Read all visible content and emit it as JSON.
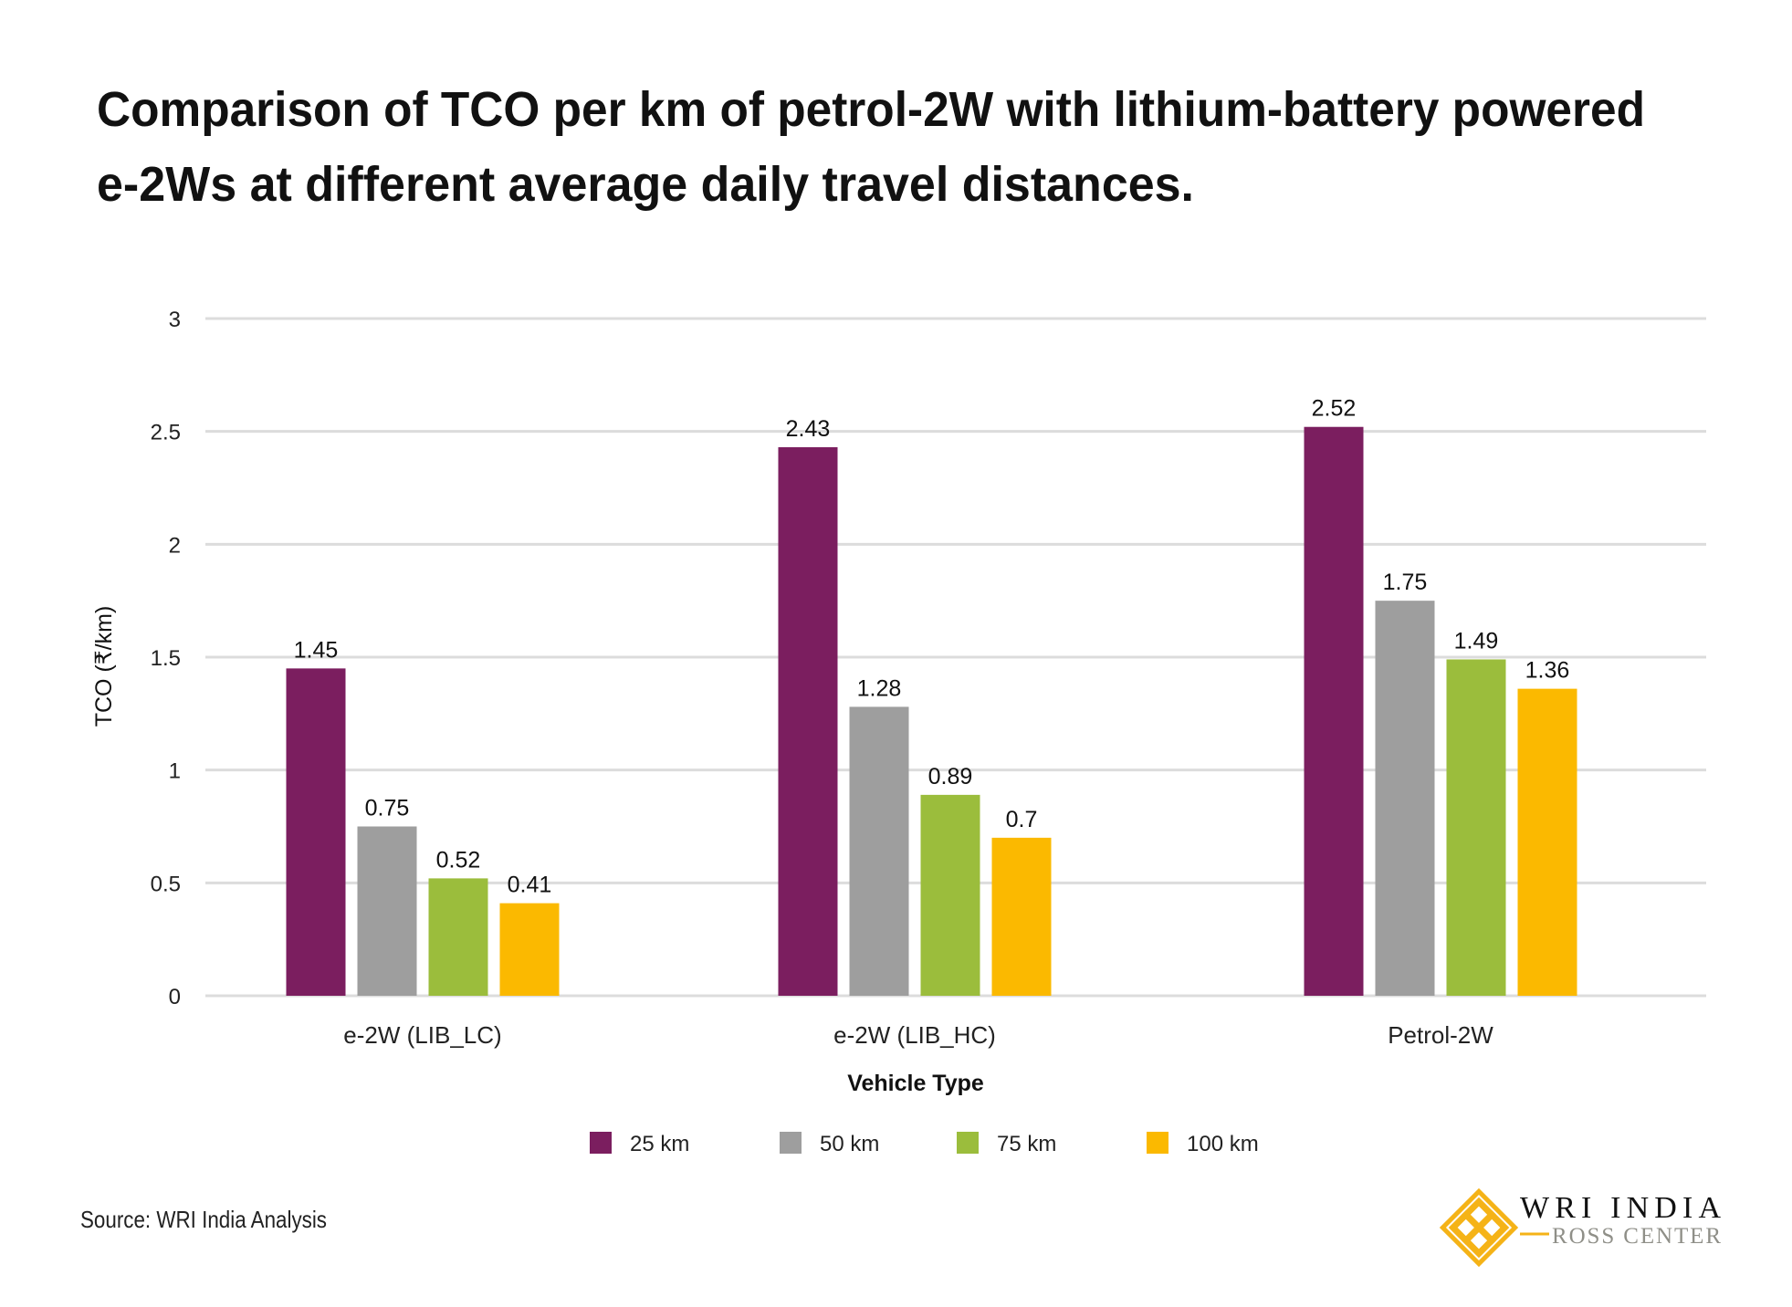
{
  "chart_data": {
    "type": "bar",
    "title": "Comparison of TCO per km of petrol-2W with lithium-battery powered e-2Ws at different average daily travel distances.",
    "title_lines": [
      "Comparison of TCO per km of petrol-2W with lithium-battery powered",
      "e-2Ws at different average daily travel distances."
    ],
    "xlabel": "Vehicle Type",
    "ylabel": "TCO (₹/km)",
    "ylim": [
      0,
      3
    ],
    "yticks": [
      "0",
      "0.5",
      "1",
      "1.5",
      "2",
      "2.5",
      "3"
    ],
    "grid": true,
    "legend_placement": "bottom",
    "categories": [
      "e-2W (LIB_LC)",
      "e-2W (LIB_HC)",
      "Petrol-2W"
    ],
    "series": [
      {
        "name": "25 km",
        "color": "#7B1E5F",
        "values": [
          1.45,
          2.43,
          2.52
        ]
      },
      {
        "name": "50 km",
        "color": "#9E9E9E",
        "values": [
          0.75,
          1.28,
          1.75
        ]
      },
      {
        "name": "75 km",
        "color": "#9BBD3C",
        "values": [
          0.52,
          0.89,
          1.49
        ]
      },
      {
        "name": "100 km",
        "color": "#FBB900",
        "values": [
          0.41,
          0.7,
          1.36
        ]
      }
    ]
  },
  "source": "Source: WRI India Analysis",
  "logo": {
    "line1": "WRI INDIA",
    "line2": "ROSS CENTER",
    "accent": "#F5B317"
  }
}
